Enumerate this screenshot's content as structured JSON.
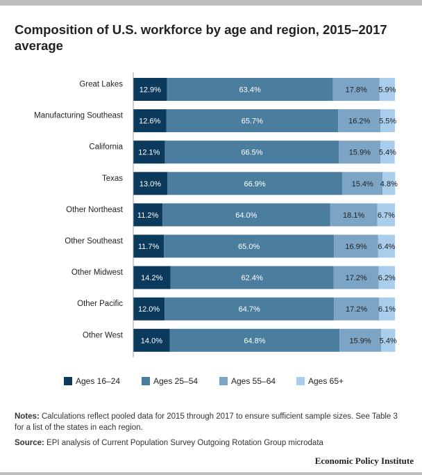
{
  "page": {
    "title": "Composition of U.S. workforce by age and region, 2015–2017 average",
    "notes_label": "Notes:",
    "notes_text": "Calculations reflect pooled data for 2015 through 2017 to ensure sufficient sample sizes. See Table 3 for a list of the states in each region.",
    "source_label": "Source:",
    "source_text": "EPI analysis of Current Population Survey Outgoing Rotation Group microdata",
    "publisher": "Economic Policy Institute"
  },
  "colors": {
    "frame_bar": "#bdbdbd",
    "axis_line": "#999999",
    "label_dark_bg": "#ffffff",
    "label_light_bg": "#222222"
  },
  "chart_data": {
    "type": "bar",
    "orientation": "horizontal",
    "stacked": true,
    "unit": "%",
    "xlim": [
      0,
      100
    ],
    "grid": false,
    "legend_position": "bottom",
    "categories": [
      "Great Lakes",
      "Manufacturing Southeast",
      "California",
      "Texas",
      "Other Northeast",
      "Other Southeast",
      "Other Midwest",
      "Other Pacific",
      "Other West"
    ],
    "series": [
      {
        "name": "Ages 16–24",
        "color": "#0b3a5c",
        "values": [
          12.9,
          12.6,
          12.1,
          13.0,
          11.2,
          11.7,
          14.2,
          12.0,
          14.0
        ]
      },
      {
        "name": "Ages 25–54",
        "color": "#4b7d9f",
        "values": [
          63.4,
          65.7,
          66.5,
          66.9,
          64.0,
          65.0,
          62.4,
          64.7,
          64.8
        ]
      },
      {
        "name": "Ages 55–64",
        "color": "#7ba4c5",
        "values": [
          17.8,
          16.2,
          15.9,
          15.4,
          18.1,
          16.9,
          17.2,
          17.2,
          15.9
        ]
      },
      {
        "name": "Ages 65+",
        "color": "#a9cdea",
        "values": [
          5.9,
          5.5,
          5.4,
          4.8,
          6.7,
          6.4,
          6.2,
          6.1,
          5.4
        ]
      }
    ],
    "data_labels": [
      [
        "12.9%",
        "12.6%",
        "12.1%",
        "13.0%",
        "11.2%",
        "11.7%",
        "14.2%",
        "12.0%",
        "14.0%"
      ],
      [
        "63.4%",
        "65.7%",
        "66.5%",
        "66.9%",
        "64.0%",
        "65.0%",
        "62.4%",
        "64.7%",
        "64.8%"
      ],
      [
        "17.8%",
        "16.2%",
        "15.9%",
        "15.4%",
        "18.1%",
        "16.9%",
        "17.2%",
        "17.2%",
        "15.9%"
      ],
      [
        "5.9%",
        "5.5%",
        "5.4%",
        "4.8%",
        "6.7%",
        "6.4%",
        "6.2%",
        "6.1%",
        "5.4%"
      ]
    ]
  }
}
